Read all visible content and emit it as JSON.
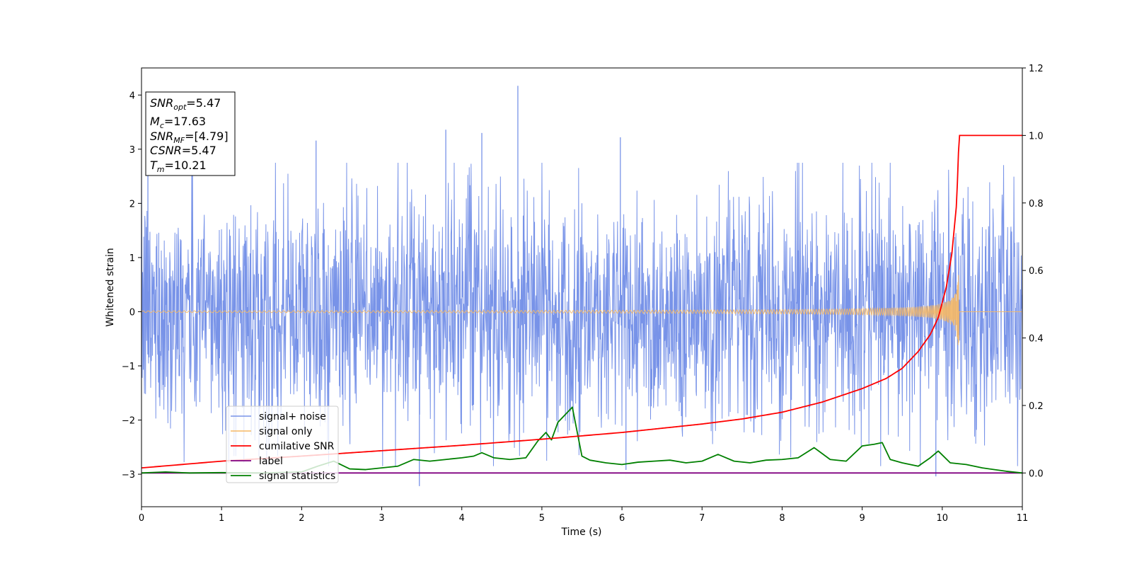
{
  "chart_data": {
    "type": "line",
    "xlabel": "Time (s)",
    "ylabel": "Whitened strain",
    "xlim": [
      0,
      11
    ],
    "ylim": [
      -3.6,
      4.5
    ],
    "y2lim": [
      -0.1,
      1.2
    ],
    "xticks": [
      "0",
      "1",
      "2",
      "3",
      "4",
      "5",
      "6",
      "7",
      "8",
      "9",
      "10",
      "11"
    ],
    "yticks": [
      "−3",
      "−2",
      "−1",
      "0",
      "1",
      "2",
      "3",
      "4"
    ],
    "y2ticks": [
      "0.0",
      "0.2",
      "0.4",
      "0.6",
      "0.8",
      "1.0",
      "1.2"
    ],
    "legend_position": "lower-left",
    "grid": false,
    "annotation": {
      "snr_opt": {
        "name": "SNR",
        "sub": "opt",
        "value": "=5.47"
      },
      "mc": {
        "name": "M",
        "sub": "c",
        "value": "=17.63"
      },
      "snr_mf": {
        "name": "SNR",
        "sub": "MF",
        "value": "=[4.79]"
      },
      "csnr": {
        "name": "CSNR",
        "sub": "",
        "value": "=5.47"
      },
      "tm": {
        "name": "T",
        "sub": "m",
        "value": "=10.21"
      }
    },
    "series": [
      {
        "name": "signal+ noise",
        "axis": "left",
        "color": "#7893e8",
        "description_values": {
          "band_amplitude": 1.5,
          "peaks": [
            [
              4.7,
              4.17
            ],
            [
              3.8,
              3.36
            ],
            [
              2.18,
              3.16
            ],
            [
              5.98,
              3.22
            ],
            [
              4.25,
              3.3
            ],
            [
              0.08,
              2.55
            ],
            [
              3.47,
              -3.22
            ],
            [
              9.92,
              -3.04
            ],
            [
              6.05,
              -2.92
            ]
          ]
        }
      },
      {
        "name": "signal only",
        "axis": "left",
        "color": "#f5b865",
        "chirp": {
          "start": 0.0,
          "merger_time": 10.21,
          "end": 11.0,
          "max_amplitude": 0.92
        }
      },
      {
        "name": "cumilative SNR",
        "axis": "right",
        "color": "#ff0000",
        "x": [
          0,
          1,
          2,
          3,
          4,
          5,
          6,
          7,
          7.5,
          8,
          8.5,
          9,
          9.3,
          9.5,
          9.7,
          9.85,
          9.95,
          10.05,
          10.12,
          10.18,
          10.21,
          11
        ],
        "y": [
          0.015,
          0.035,
          0.05,
          0.066,
          0.082,
          0.1,
          0.12,
          0.145,
          0.16,
          0.18,
          0.21,
          0.25,
          0.28,
          0.31,
          0.36,
          0.41,
          0.46,
          0.55,
          0.65,
          0.8,
          1.0,
          1.0
        ]
      },
      {
        "name": "label",
        "axis": "right",
        "color": "#800080",
        "x": [
          0,
          11
        ],
        "y": [
          0.0,
          0.0
        ]
      },
      {
        "name": "signal statistics",
        "axis": "right",
        "color": "#008000",
        "x": [
          0,
          0.3,
          0.6,
          1.0,
          1.5,
          2.0,
          2.2,
          2.4,
          2.6,
          2.8,
          3.0,
          3.2,
          3.4,
          3.6,
          3.8,
          4.0,
          4.15,
          4.25,
          4.4,
          4.6,
          4.8,
          4.95,
          5.05,
          5.12,
          5.2,
          5.28,
          5.38,
          5.5,
          5.6,
          5.8,
          6.0,
          6.2,
          6.4,
          6.6,
          6.8,
          7.0,
          7.2,
          7.4,
          7.6,
          7.8,
          8.0,
          8.2,
          8.4,
          8.6,
          8.8,
          9.0,
          9.15,
          9.25,
          9.35,
          9.5,
          9.7,
          9.85,
          9.95,
          10.1,
          10.3,
          10.5,
          10.8,
          11.0
        ],
        "y": [
          0.0,
          0.003,
          0.0,
          0.001,
          0.0,
          0.003,
          0.02,
          0.035,
          0.012,
          0.01,
          0.015,
          0.02,
          0.04,
          0.035,
          0.04,
          0.045,
          0.05,
          0.06,
          0.045,
          0.04,
          0.045,
          0.095,
          0.12,
          0.098,
          0.15,
          0.17,
          0.195,
          0.05,
          0.038,
          0.03,
          0.025,
          0.032,
          0.035,
          0.038,
          0.03,
          0.035,
          0.055,
          0.035,
          0.03,
          0.038,
          0.04,
          0.045,
          0.075,
          0.04,
          0.035,
          0.08,
          0.085,
          0.09,
          0.04,
          0.03,
          0.02,
          0.045,
          0.065,
          0.03,
          0.025,
          0.015,
          0.005,
          0.0
        ]
      }
    ]
  }
}
